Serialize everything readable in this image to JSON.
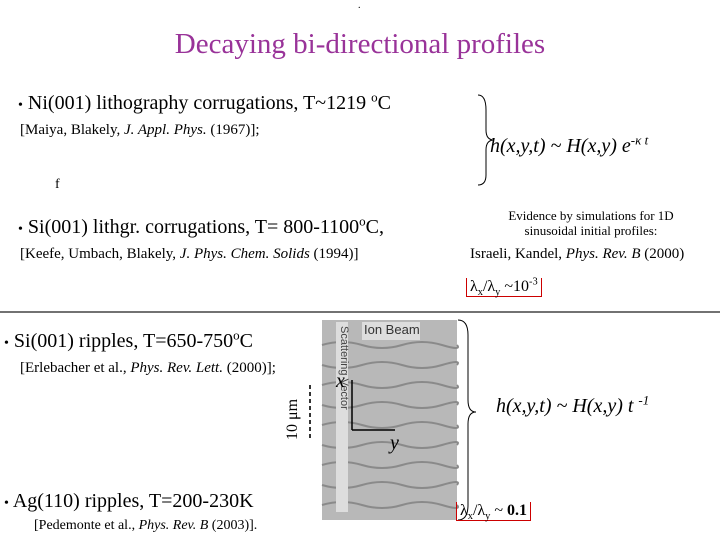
{
  "dot": ".",
  "title": "Decaying bi-directional profiles",
  "items": [
    {
      "bullet": "•",
      "text": [
        "Ni(001) lithography corrugations, T~1219 ",
        "o",
        "C"
      ],
      "citation": [
        "[Maiya, Blakely, ",
        "J. Appl. Phys.",
        " (1967)];"
      ]
    },
    {
      "bullet": "•",
      "text": [
        "Si(001)  lithgr. corrugations, T= 800-1100",
        "o",
        "C,"
      ],
      "citation": [
        "[Keefe, Umbach, Blakely, ",
        "J. Phys. Chem. Solids",
        " (1994)]"
      ]
    },
    {
      "bullet": "•",
      "text": [
        "Si(001) ripples, T=650-750",
        "o",
        "C"
      ],
      "citation": [
        "[Erlebacher et al., ",
        "Phys. Rev. Lett.",
        " (2000)];"
      ]
    },
    {
      "bullet": "•",
      "text": [
        "Ag(110) ripples, T=200-230K",
        "",
        ""
      ],
      "citation": [
        "[Pedemonte et al., ",
        "Phys. Rev. B",
        " (2003)]."
      ]
    }
  ],
  "stray": "f",
  "formula1": [
    "h(x,y,t) ~ H(x,y) e",
    "-κ t"
  ],
  "evidence": {
    "line1": "Evidence by simulations for 1D",
    "line2": "sinusoidal initial profiles:",
    "line3": [
      "Israeli, Kandel, ",
      "Phys. Rev. B",
      " (2000)"
    ]
  },
  "ratio1": [
    "λ",
    "x",
    "/λ",
    "y",
    " ~10",
    "-3"
  ],
  "image": {
    "ion": "Ion Beam",
    "vector": "Scattering Vector",
    "scale": "10 μm",
    "x": "x",
    "y": "y"
  },
  "formula2": [
    "h(x,y,t) ~ H(x,y) t ",
    "-1"
  ],
  "ratio2": [
    "λ",
    "x",
    "/λ",
    "y",
    " ~ ",
    "0.1"
  ]
}
